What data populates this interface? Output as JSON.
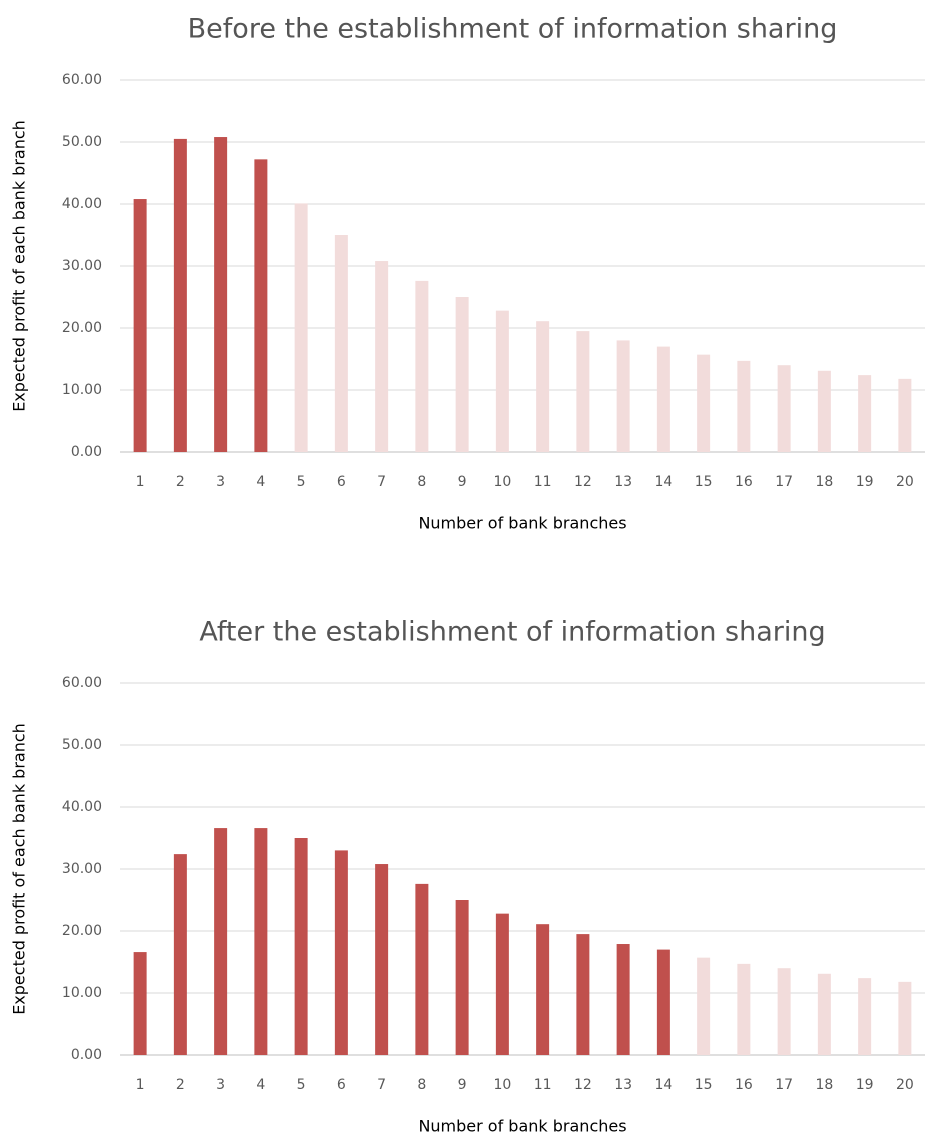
{
  "chart_data": [
    {
      "type": "bar",
      "title": "Before the establishment of information sharing",
      "x_label": "Number  of bank branches",
      "y_label": "Expected  profit of each bank branch",
      "categories": [
        "1",
        "2",
        "3",
        "4",
        "5",
        "6",
        "7",
        "8",
        "9",
        "10",
        "11",
        "12",
        "13",
        "14",
        "15",
        "16",
        "17",
        "18",
        "19",
        "20"
      ],
      "values": [
        40.8,
        50.5,
        50.8,
        47.2,
        40.1,
        35.0,
        30.8,
        27.6,
        25.0,
        22.8,
        21.1,
        19.5,
        18.0,
        17.0,
        15.7,
        14.7,
        14.0,
        13.1,
        12.4,
        11.8
      ],
      "colors": [
        "#c0504d",
        "#c0504d",
        "#c0504d",
        "#c0504d",
        "#f2dcdb",
        "#f2dcdb",
        "#f2dcdb",
        "#f2dcdb",
        "#f2dcdb",
        "#f2dcdb",
        "#f2dcdb",
        "#f2dcdb",
        "#f2dcdb",
        "#f2dcdb",
        "#f2dcdb",
        "#f2dcdb",
        "#f2dcdb",
        "#f2dcdb",
        "#f2dcdb",
        "#f2dcdb"
      ],
      "ylim": [
        0,
        60
      ],
      "yticks": [
        {
          "value": 0,
          "label": "0.00"
        },
        {
          "value": 10,
          "label": "10.00"
        },
        {
          "value": 20,
          "label": "20.00"
        },
        {
          "value": 30,
          "label": "30.00"
        },
        {
          "value": 40,
          "label": "40.00"
        },
        {
          "value": 50,
          "label": "50.00"
        },
        {
          "value": 60,
          "label": "60.00"
        }
      ],
      "grid": true
    },
    {
      "type": "bar",
      "title": "After the establishment of information sharing",
      "x_label": "Number  of bank branches",
      "y_label": "Expected  profit of each bank branch",
      "categories": [
        "1",
        "2",
        "3",
        "4",
        "5",
        "6",
        "7",
        "8",
        "9",
        "10",
        "11",
        "12",
        "13",
        "14",
        "15",
        "16",
        "17",
        "18",
        "19",
        "20"
      ],
      "values": [
        16.6,
        32.4,
        36.6,
        36.6,
        35.0,
        33.0,
        30.8,
        27.6,
        25.0,
        22.8,
        21.1,
        19.5,
        17.9,
        17.0,
        15.7,
        14.7,
        14.0,
        13.1,
        12.4,
        11.8
      ],
      "colors": [
        "#c0504d",
        "#c0504d",
        "#c0504d",
        "#c0504d",
        "#c0504d",
        "#c0504d",
        "#c0504d",
        "#c0504d",
        "#c0504d",
        "#c0504d",
        "#c0504d",
        "#c0504d",
        "#c0504d",
        "#c0504d",
        "#f2dcdb",
        "#f2dcdb",
        "#f2dcdb",
        "#f2dcdb",
        "#f2dcdb",
        "#f2dcdb"
      ],
      "ylim": [
        0,
        60
      ],
      "yticks": [
        {
          "value": 0,
          "label": "0.00"
        },
        {
          "value": 10,
          "label": "10.00"
        },
        {
          "value": 20,
          "label": "20.00"
        },
        {
          "value": 30,
          "label": "30.00"
        },
        {
          "value": 40,
          "label": "40.00"
        },
        {
          "value": 50,
          "label": "50.00"
        },
        {
          "value": 60,
          "label": "60.00"
        }
      ],
      "grid": true
    }
  ]
}
